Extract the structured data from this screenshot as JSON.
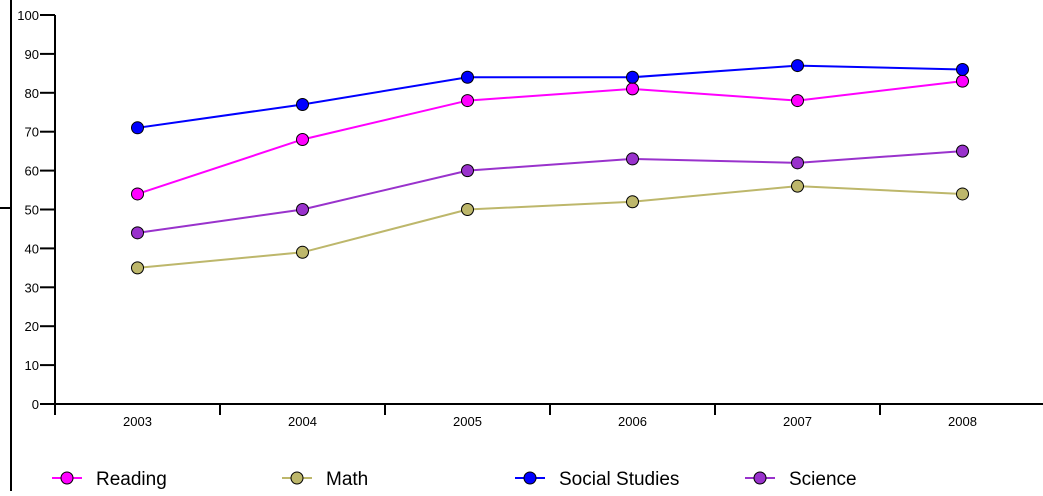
{
  "chart_data": {
    "type": "line",
    "categories": [
      "2003",
      "2004",
      "2005",
      "2006",
      "2007",
      "2008"
    ],
    "ylim": [
      0,
      100
    ],
    "yticks": [
      0,
      10,
      20,
      30,
      40,
      50,
      60,
      70,
      80,
      90,
      100
    ],
    "grid": false,
    "legend_position": "bottom",
    "series": [
      {
        "name": "Reading",
        "color": "#ff00ff",
        "values": [
          54,
          68,
          78,
          81,
          78,
          83
        ]
      },
      {
        "name": "Math",
        "color": "#bdb76b",
        "values": [
          35,
          39,
          50,
          52,
          56,
          54
        ]
      },
      {
        "name": "Social Studies",
        "color": "#0000ff",
        "values": [
          71,
          77,
          84,
          84,
          87,
          86
        ]
      },
      {
        "name": "Science",
        "color": "#9932cc",
        "values": [
          44,
          50,
          60,
          63,
          62,
          65
        ]
      }
    ]
  }
}
